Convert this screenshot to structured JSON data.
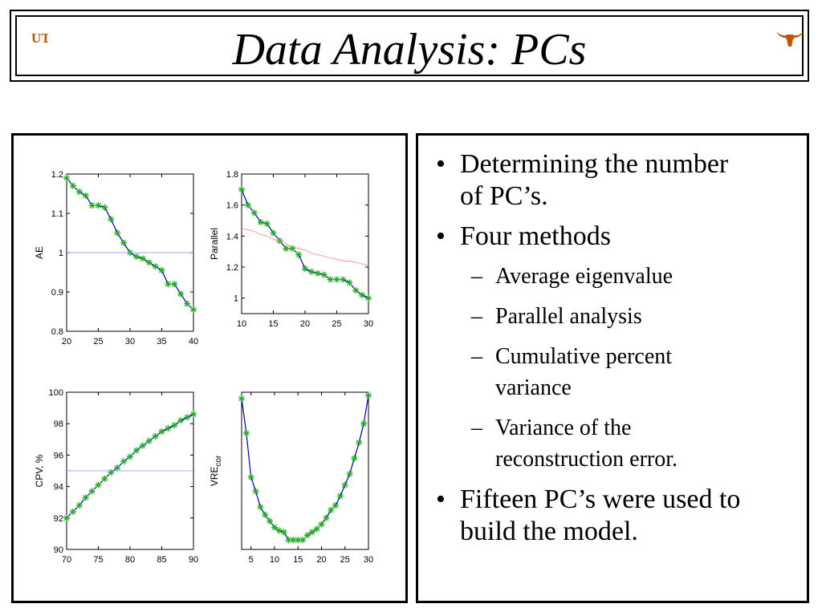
{
  "slide": {
    "title": "Data Analysis: PCs",
    "logo_left": "UT",
    "logo_right_icon": "longhorn-icon"
  },
  "bullets": [
    {
      "level": 1,
      "marker": "•",
      "text_lines": [
        "Determining the number",
        "of PC’s."
      ]
    },
    {
      "level": 1,
      "marker": "•",
      "text_lines": [
        "Four methods"
      ]
    },
    {
      "level": 2,
      "marker": "–",
      "text_lines": [
        "Average eigenvalue"
      ]
    },
    {
      "level": 2,
      "marker": "–",
      "text_lines": [
        "Parallel analysis"
      ]
    },
    {
      "level": 2,
      "marker": "–",
      "text_lines": [
        "Cumulative percent",
        "variance"
      ]
    },
    {
      "level": 2,
      "marker": "–",
      "text_lines": [
        "Variance of the",
        "reconstruction error."
      ]
    },
    {
      "level": 1,
      "marker": "•",
      "text_lines": [
        "Fifteen PC’s were used to",
        "build the model."
      ]
    }
  ],
  "colors": {
    "series": "#0000aa",
    "markers": "#22aa22",
    "reference_ae": "#8888ff",
    "reference_parallel": "#ff8888",
    "reference_cpv": "#8888ff"
  },
  "chart_data": [
    {
      "type": "line",
      "ylabel": "AE",
      "xlim": [
        20,
        40
      ],
      "ylim": [
        0.8,
        1.2
      ],
      "xticks": [
        "20",
        "25",
        "30",
        "35",
        "40"
      ],
      "yticks": [
        "0.8",
        "0.9",
        "1",
        "1.1",
        "1.2"
      ],
      "x": [
        20,
        21,
        22,
        23,
        24,
        25,
        26,
        27,
        28,
        29,
        30,
        31,
        32,
        33,
        34,
        35,
        36,
        37,
        38,
        39,
        40
      ],
      "series": [
        {
          "values": [
            1.19,
            1.17,
            1.155,
            1.145,
            1.12,
            1.12,
            1.115,
            1.085,
            1.05,
            1.025,
            1.0,
            0.99,
            0.985,
            0.975,
            0.965,
            0.955,
            0.92,
            0.92,
            0.895,
            0.87,
            0.855
          ],
          "markers": "*"
        },
        {
          "values": [
            1.0,
            1.0,
            1.0,
            1.0,
            1.0,
            1.0,
            1.0,
            1.0,
            1.0,
            1.0,
            1.0,
            1.0,
            1.0,
            1.0,
            1.0,
            1.0,
            1.0,
            1.0,
            1.0,
            1.0,
            1.0
          ],
          "reference": true
        }
      ]
    },
    {
      "type": "line",
      "ylabel": "Parallel",
      "xlim": [
        10,
        30
      ],
      "ylim": [
        0.9,
        1.8
      ],
      "xticks": [
        "10",
        "15",
        "20",
        "25",
        "30"
      ],
      "yticks": [
        "1",
        "1.2",
        "1.4",
        "1.6",
        "1.8"
      ],
      "x": [
        10,
        11,
        12,
        13,
        14,
        15,
        16,
        17,
        18,
        19,
        20,
        21,
        22,
        23,
        24,
        25,
        26,
        27,
        28,
        29,
        30
      ],
      "series": [
        {
          "values": [
            1.7,
            1.6,
            1.55,
            1.49,
            1.48,
            1.42,
            1.37,
            1.32,
            1.32,
            1.28,
            1.19,
            1.17,
            1.16,
            1.15,
            1.12,
            1.12,
            1.12,
            1.1,
            1.05,
            1.02,
            1.0
          ],
          "markers": "*"
        },
        {
          "values": [
            1.45,
            1.44,
            1.43,
            1.41,
            1.4,
            1.38,
            1.37,
            1.35,
            1.33,
            1.32,
            1.31,
            1.29,
            1.28,
            1.27,
            1.26,
            1.25,
            1.24,
            1.24,
            1.23,
            1.22,
            1.21
          ],
          "reference": true
        }
      ]
    },
    {
      "type": "line",
      "ylabel": "CPV, %",
      "xlim": [
        70,
        90
      ],
      "ylim": [
        90,
        100
      ],
      "xticks": [
        "70",
        "75",
        "80",
        "85",
        "90"
      ],
      "yticks": [
        "90",
        "92",
        "94",
        "96",
        "98",
        "100"
      ],
      "x": [
        70,
        71,
        72,
        73,
        74,
        75,
        76,
        77,
        78,
        79,
        80,
        81,
        82,
        83,
        84,
        85,
        86,
        87,
        88,
        89,
        90
      ],
      "series": [
        {
          "values": [
            92.0,
            92.4,
            92.8,
            93.3,
            93.7,
            94.1,
            94.5,
            94.9,
            95.2,
            95.6,
            95.9,
            96.3,
            96.6,
            96.9,
            97.2,
            97.5,
            97.7,
            97.9,
            98.2,
            98.4,
            98.6
          ],
          "markers": "*"
        },
        {
          "values": [
            95.0,
            95.0,
            95.0,
            95.0,
            95.0,
            95.0,
            95.0,
            95.0,
            95.0,
            95.0,
            95.0,
            95.0,
            95.0,
            95.0,
            95.0,
            95.0,
            95.0,
            95.0,
            95.0,
            95.0,
            95.0
          ],
          "reference": true
        }
      ]
    },
    {
      "type": "line",
      "ylabel": "VRE",
      "ylabel_sub": "cor",
      "xlim": [
        3,
        30
      ],
      "ylim": [
        0,
        1
      ],
      "xticks": [
        "5",
        "10",
        "15",
        "20",
        "25",
        "30"
      ],
      "yticks": [],
      "x": [
        3,
        4,
        5,
        6,
        7,
        8,
        9,
        10,
        11,
        12,
        13,
        14,
        15,
        16,
        17,
        18,
        19,
        20,
        21,
        22,
        23,
        24,
        25,
        26,
        27,
        28,
        29,
        30
      ],
      "series": [
        {
          "values": [
            0.96,
            0.74,
            0.46,
            0.37,
            0.27,
            0.22,
            0.18,
            0.14,
            0.12,
            0.11,
            0.06,
            0.06,
            0.06,
            0.06,
            0.09,
            0.11,
            0.13,
            0.16,
            0.2,
            0.25,
            0.28,
            0.34,
            0.41,
            0.48,
            0.58,
            0.68,
            0.8,
            0.98
          ],
          "markers": "*"
        }
      ]
    }
  ]
}
